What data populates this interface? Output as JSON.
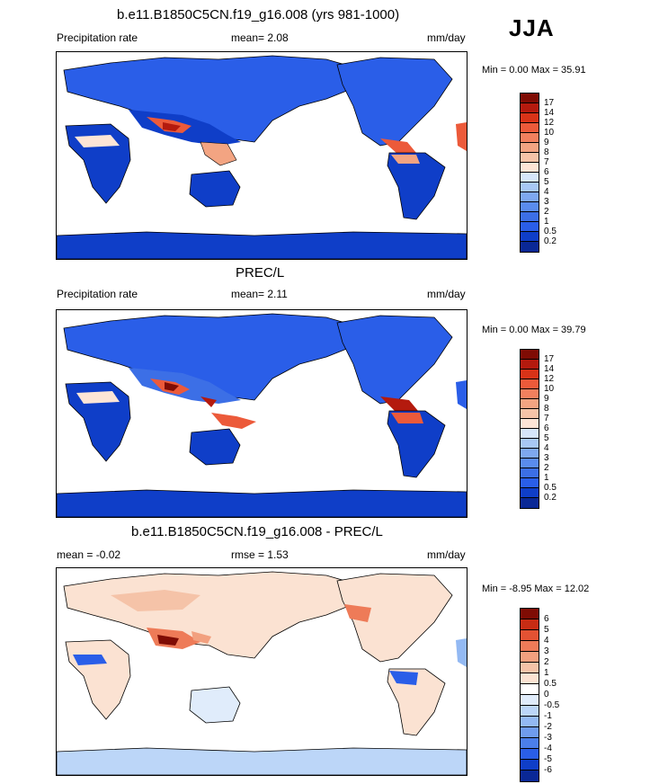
{
  "season_label": "JJA",
  "colors": {
    "precip_scale": [
      "#0a2896",
      "#0f3ec8",
      "#2a5ee8",
      "#3c6fe6",
      "#5a8cee",
      "#7ea8f0",
      "#a8c8f5",
      "#d6e6fa",
      "#fde5d6",
      "#f6c4a8",
      "#f3a482",
      "#f2805e",
      "#ec5a3a",
      "#d93318",
      "#b41a0e",
      "#7f0c04"
    ],
    "diff_scale": [
      "#0a2896",
      "#0f3ec8",
      "#2a5ee8",
      "#4b7fea",
      "#6f9cee",
      "#93b9f3",
      "#bcd6f8",
      "#e0ecfb",
      "#fbe2d2",
      "#f5c3a8",
      "#f2a07f",
      "#ee7b58",
      "#e35233",
      "#c82c14",
      "#7f0c04"
    ]
  },
  "panels": [
    {
      "title": "b.e11.B1850C5CN.f19_g16.008 (yrs 981-1000)",
      "left_label": "Precipitation rate",
      "mean_text": "mean=   2.08",
      "units": "mm/day",
      "minmax": "Min =   0.00 Max =  35.91",
      "levels": [
        "17",
        "14",
        "12",
        "10",
        "9",
        "8",
        "7",
        "6",
        "5",
        "4",
        "3",
        "2",
        "1",
        "0.5",
        "0.2"
      ]
    },
    {
      "title": "PREC/L",
      "left_label": "Precipitation rate",
      "mean_text": "mean=   2.11",
      "units": "mm/day",
      "minmax": "Min =   0.00 Max =  39.79",
      "levels": [
        "17",
        "14",
        "12",
        "10",
        "9",
        "8",
        "7",
        "6",
        "5",
        "4",
        "3",
        "2",
        "1",
        "0.5",
        "0.2"
      ]
    },
    {
      "title": "b.e11.B1850C5CN.f19_g16.008 - PREC/L",
      "left_label": "mean =  -0.02",
      "mean_text": "rmse =   1.53",
      "units": "mm/day",
      "minmax": "Min =  -8.95 Max =  12.02",
      "levels": [
        "6",
        "5",
        "4",
        "3",
        "2",
        "1",
        "0.5",
        "0",
        "-0.5",
        "-1",
        "-2",
        "-3",
        "-4",
        "-5",
        "-6"
      ]
    }
  ]
}
